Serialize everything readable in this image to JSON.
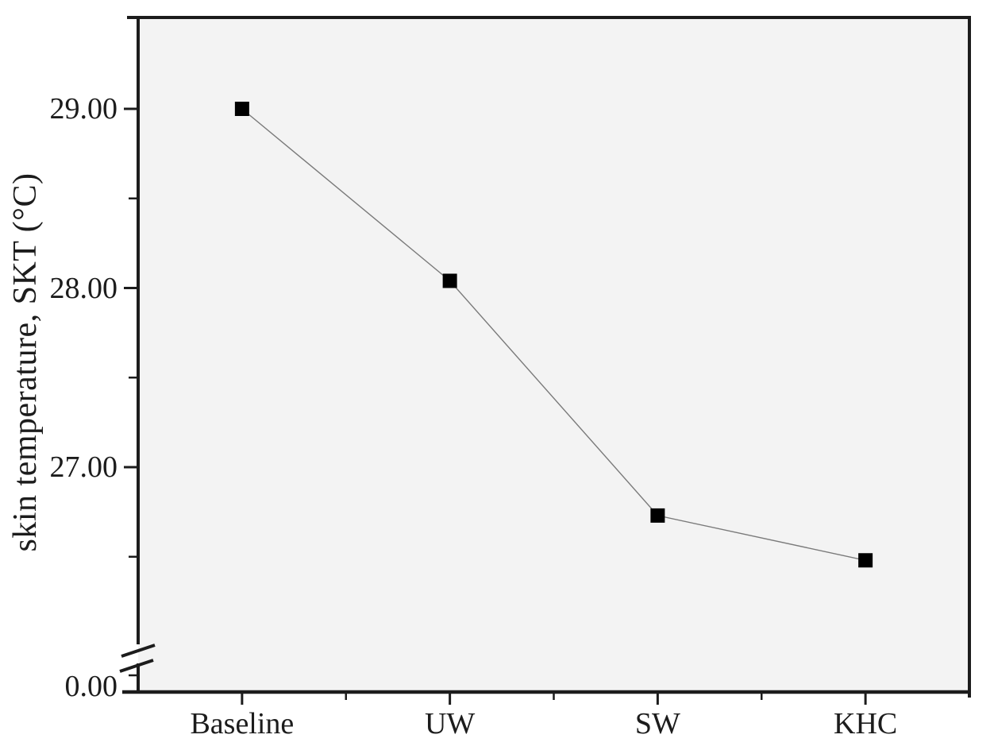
{
  "chart_data": {
    "type": "line",
    "title": "",
    "categories": [
      "Baseline",
      "UW",
      "SW",
      "KHC"
    ],
    "series": [
      {
        "name": "skin temperature, SKT",
        "marker": "filled-square",
        "values": [
          29.0,
          28.04,
          26.73,
          26.48
        ]
      }
    ],
    "xlabel": "",
    "ylabel": "skin temperature, SKT (°C)",
    "y_major_tick_labels": [
      "29.00",
      "28.00",
      "27.00"
    ],
    "y_major_tick_values": [
      29,
      28,
      27
    ],
    "y_minor_tick_values": [
      28.5,
      27.5,
      26.5
    ],
    "y_break": {
      "present": true,
      "lower_label": "0.00",
      "lower_value": 0
    },
    "y_axis_visible_range_upper_segment": [
      26.1,
      29.5
    ],
    "grid": false,
    "legend": "none",
    "colors": {
      "marker": "#000000",
      "line": "#7a7a7a",
      "axis": "#1c1c1c",
      "plot_background": "#f3f3f3",
      "page_background": "#ffffff",
      "text": "#1c1c1c"
    }
  }
}
